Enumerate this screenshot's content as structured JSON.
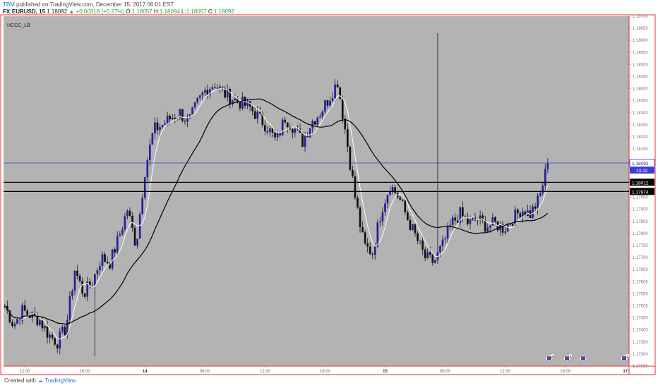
{
  "header": {
    "user": "TBM",
    "published": "published on TradingView.com, December 15, 2017 06:01 EST",
    "symbol": "FX:EURUSD, 15",
    "last": "1.18092",
    "change": "▲ +0.00318 (+0.27%)",
    "o_label": "O:",
    "o_val": "1.18057",
    "h_label": "H:",
    "h_val": "1.18094",
    "l_label": "L:",
    "l_val": "1.18057",
    "c_label": "C:",
    "c_val": "1.18092"
  },
  "indicator_label": "HCCC_LB",
  "footer": {
    "created": "Created with",
    "brand": "TradingView"
  },
  "colors": {
    "plot_bg": "#b3b3b3",
    "bull": "#22229a",
    "bear": "#111111",
    "wick": "#1a1a1a",
    "ma_fast": "#ffffff",
    "ma_slow": "#000000",
    "price_line": "#3b3bd6",
    "border": "#e03030"
  },
  "chart_data": {
    "type": "candlestick",
    "title": "",
    "xlabel": "",
    "ylabel": "",
    "ylim": [
      1.1725,
      1.187
    ],
    "y_ticks": [
      "1.18700",
      "1.18650",
      "1.18600",
      "1.18550",
      "1.18500",
      "1.18450",
      "1.18400",
      "1.18350",
      "1.18300",
      "1.18250",
      "1.18200",
      "1.18150",
      "1.17950",
      "1.17900",
      "1.17850",
      "1.17800",
      "1.17750",
      "1.17700",
      "1.17650",
      "1.17600",
      "1.17550",
      "1.17500",
      "1.17450",
      "1.17400",
      "1.17350",
      "1.17300",
      "1.17250"
    ],
    "x_ticks": [
      {
        "label": "12:00",
        "bold": false
      },
      {
        "label": "18:00",
        "bold": false
      },
      {
        "label": "14",
        "bold": true
      },
      {
        "label": "06:00",
        "bold": false
      },
      {
        "label": "12:00",
        "bold": false
      },
      {
        "label": "18:00",
        "bold": false
      },
      {
        "label": "15",
        "bold": true
      },
      {
        "label": "06:00",
        "bold": false
      },
      {
        "label": "12:00",
        "bold": false
      },
      {
        "label": "18:00",
        "bold": false
      },
      {
        "label": "17",
        "bold": true
      }
    ],
    "x_tick_bars": [
      8,
      32,
      56,
      80,
      104,
      128,
      152,
      176,
      200,
      224,
      248
    ],
    "total_bars": 250,
    "horizontal_lines": [
      {
        "value": 1.18012,
        "label": "1.18012"
      },
      {
        "value": 1.17974,
        "label": "1.17974"
      }
    ],
    "current_price": {
      "value": 1.18092,
      "label": "1.18092",
      "countdown": "13:22"
    },
    "event_badges": [
      "3",
      "2",
      "4"
    ],
    "series": [
      {
        "name": "price",
        "kind": "ohlc",
        "keypoints": [
          1.175,
          1.1742,
          1.1748,
          1.1746,
          1.1744,
          1.1738,
          1.1735,
          1.1741,
          1.1765,
          1.1755,
          1.176,
          1.177,
          1.1768,
          1.1778,
          1.179,
          1.1775,
          1.1806,
          1.1823,
          1.1825,
          1.1828,
          1.183,
          1.1826,
          1.1834,
          1.184,
          1.1842,
          1.1838,
          1.1836,
          1.1834,
          1.1832,
          1.1828,
          1.1824,
          1.1818,
          1.1828,
          1.1824,
          1.1818,
          1.1826,
          1.183,
          1.1836,
          1.1843,
          1.182,
          1.1795,
          1.1775,
          1.1772,
          1.179,
          1.18,
          1.1795,
          1.1786,
          1.1778,
          1.177,
          1.1768,
          1.1775,
          1.1784,
          1.1788,
          1.1784,
          1.1786,
          1.1783,
          1.1784,
          1.1782,
          1.1786,
          1.179,
          1.1788,
          1.1794,
          1.1809
        ],
        "step_bars": 3.5
      },
      {
        "name": "",
        "kind": "ma_fast"
      },
      {
        "name": "",
        "kind": "ma_slow"
      }
    ]
  }
}
